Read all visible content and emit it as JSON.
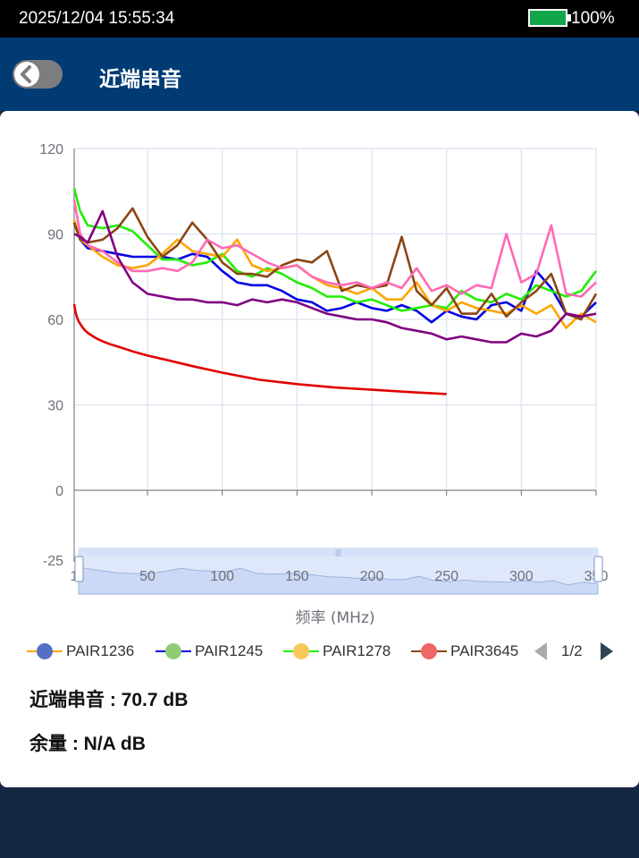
{
  "status_bar": {
    "datetime": "2025/12/04 15:55:34",
    "battery": "100%",
    "battery_color": "#12a64b"
  },
  "header": {
    "title": "近端串音",
    "back_icon": "chevron-left-icon"
  },
  "chart_data": {
    "type": "line",
    "xlabel": "频率 (MHz)",
    "ylabel": "",
    "xlim": [
      1,
      350
    ],
    "ylim": [
      0,
      120
    ],
    "y_ticks": [
      "120",
      "90",
      "60",
      "30",
      "0"
    ],
    "x_ticks": [
      "1",
      "50",
      "100",
      "150",
      "200",
      "250",
      "300",
      "350"
    ],
    "zoom_min_label": "-25",
    "grid": true,
    "legend_position": "bottom",
    "series": [
      {
        "name": "PAIR1236",
        "color": "#0000e6",
        "legend_marker_color": "#5470c6",
        "x": [
          1,
          5,
          10,
          20,
          30,
          40,
          50,
          60,
          70,
          80,
          90,
          100,
          110,
          120,
          130,
          140,
          150,
          160,
          170,
          180,
          190,
          200,
          210,
          220,
          230,
          240,
          250,
          260,
          270,
          280,
          290,
          300,
          310,
          320,
          330,
          340,
          350
        ],
        "y": [
          94,
          88,
          85,
          84,
          83,
          82,
          82,
          82,
          81,
          83,
          82,
          77,
          73,
          72,
          72,
          70,
          67,
          66,
          63,
          64,
          66,
          64,
          63,
          65,
          63,
          59,
          63,
          61,
          60,
          65,
          66,
          63,
          77,
          71,
          62,
          61,
          66
        ]
      },
      {
        "name": "PAIR1245",
        "color": "#22ee00",
        "legend_marker_color": "#91cc75",
        "x": [
          1,
          5,
          10,
          20,
          30,
          40,
          50,
          60,
          70,
          80,
          90,
          100,
          110,
          120,
          130,
          140,
          150,
          160,
          170,
          180,
          190,
          200,
          210,
          220,
          230,
          240,
          250,
          260,
          270,
          280,
          290,
          300,
          310,
          320,
          330,
          340,
          350
        ],
        "y": [
          106,
          98,
          93,
          92,
          93,
          91,
          86,
          81,
          81,
          79,
          80,
          83,
          77,
          75,
          78,
          76,
          73,
          71,
          68,
          68,
          66,
          67,
          65,
          63,
          64,
          65,
          64,
          70,
          67,
          66,
          69,
          67,
          72,
          70,
          68,
          70,
          77
        ]
      },
      {
        "name": "PAIR1278",
        "color": "#ffa500",
        "legend_marker_color": "#fac858",
        "x": [
          1,
          5,
          10,
          20,
          30,
          40,
          50,
          60,
          70,
          80,
          90,
          100,
          110,
          120,
          130,
          140,
          150,
          160,
          170,
          180,
          190,
          200,
          210,
          220,
          230,
          240,
          250,
          260,
          270,
          280,
          290,
          300,
          310,
          320,
          330,
          340,
          350
        ],
        "y": [
          95,
          88,
          86,
          82,
          79,
          78,
          79,
          83,
          88,
          84,
          83,
          82,
          88,
          79,
          77,
          78,
          79,
          75,
          72,
          71,
          69,
          71,
          67,
          67,
          73,
          65,
          63,
          66,
          64,
          63,
          62,
          65,
          62,
          65,
          57,
          62,
          59
        ]
      },
      {
        "name": "PAIR3645",
        "color": "#8b4513",
        "legend_marker_color": "#ee6666",
        "x": [
          1,
          5,
          10,
          20,
          30,
          40,
          50,
          60,
          70,
          80,
          90,
          100,
          110,
          120,
          130,
          140,
          150,
          160,
          170,
          180,
          190,
          200,
          210,
          220,
          230,
          240,
          250,
          260,
          270,
          280,
          290,
          300,
          310,
          320,
          330,
          340,
          350
        ],
        "y": [
          94,
          88,
          87,
          88,
          92,
          99,
          89,
          82,
          86,
          94,
          88,
          80,
          76,
          76,
          75,
          79,
          81,
          80,
          84,
          70,
          72,
          71,
          72,
          89,
          70,
          65,
          71,
          62,
          62,
          69,
          61,
          66,
          70,
          76,
          62,
          60,
          69
        ]
      },
      {
        "name": "",
        "color": "#ff69b4",
        "x": [
          1,
          5,
          10,
          20,
          30,
          40,
          50,
          60,
          70,
          80,
          90,
          100,
          110,
          120,
          130,
          140,
          150,
          160,
          170,
          180,
          190,
          200,
          210,
          220,
          230,
          240,
          250,
          260,
          270,
          280,
          290,
          300,
          310,
          320,
          330,
          340,
          350
        ],
        "y": [
          102,
          90,
          86,
          84,
          80,
          77,
          77,
          78,
          77,
          80,
          88,
          85,
          86,
          83,
          80,
          78,
          79,
          75,
          73,
          72,
          73,
          71,
          73,
          71,
          78,
          70,
          72,
          69,
          72,
          71,
          90,
          73,
          76,
          93,
          69,
          68,
          73
        ]
      },
      {
        "name": "",
        "color": "#800080",
        "x": [
          1,
          5,
          10,
          20,
          30,
          40,
          50,
          60,
          70,
          80,
          90,
          100,
          110,
          120,
          130,
          140,
          150,
          160,
          170,
          180,
          190,
          200,
          210,
          220,
          230,
          240,
          250,
          260,
          270,
          280,
          290,
          300,
          310,
          320,
          330,
          340,
          350
        ],
        "y": [
          90,
          89,
          87,
          98,
          82,
          73,
          69,
          68,
          67,
          67,
          66,
          66,
          65,
          67,
          66,
          67,
          66,
          64,
          62,
          61,
          60,
          60,
          59,
          57,
          56,
          55,
          53,
          54,
          53,
          52,
          52,
          55,
          54,
          56,
          62,
          61,
          62
        ]
      },
      {
        "name": "",
        "color": "#e00000",
        "x": [
          1,
          2,
          3,
          4,
          6,
          8,
          10,
          15,
          20,
          25,
          31.25,
          40,
          50,
          62.5,
          80,
          100,
          125,
          150,
          175,
          200,
          225,
          250
        ],
        "y": [
          65.3,
          62.3,
          60.6,
          59.3,
          57.6,
          56.3,
          55.3,
          53.6,
          52.3,
          51.3,
          50.3,
          48.8,
          47.3,
          45.8,
          43.6,
          41.3,
          38.8,
          37.3,
          36.1,
          35.3,
          34.5,
          33.8
        ]
      }
    ]
  },
  "pager": {
    "text": "1/2",
    "prev_icon": "triangle-left-icon",
    "next_icon": "triangle-right-icon"
  },
  "results": {
    "next_label": "近端串音 : 70.7 dB",
    "margin_label": "余量 : N/A dB"
  }
}
